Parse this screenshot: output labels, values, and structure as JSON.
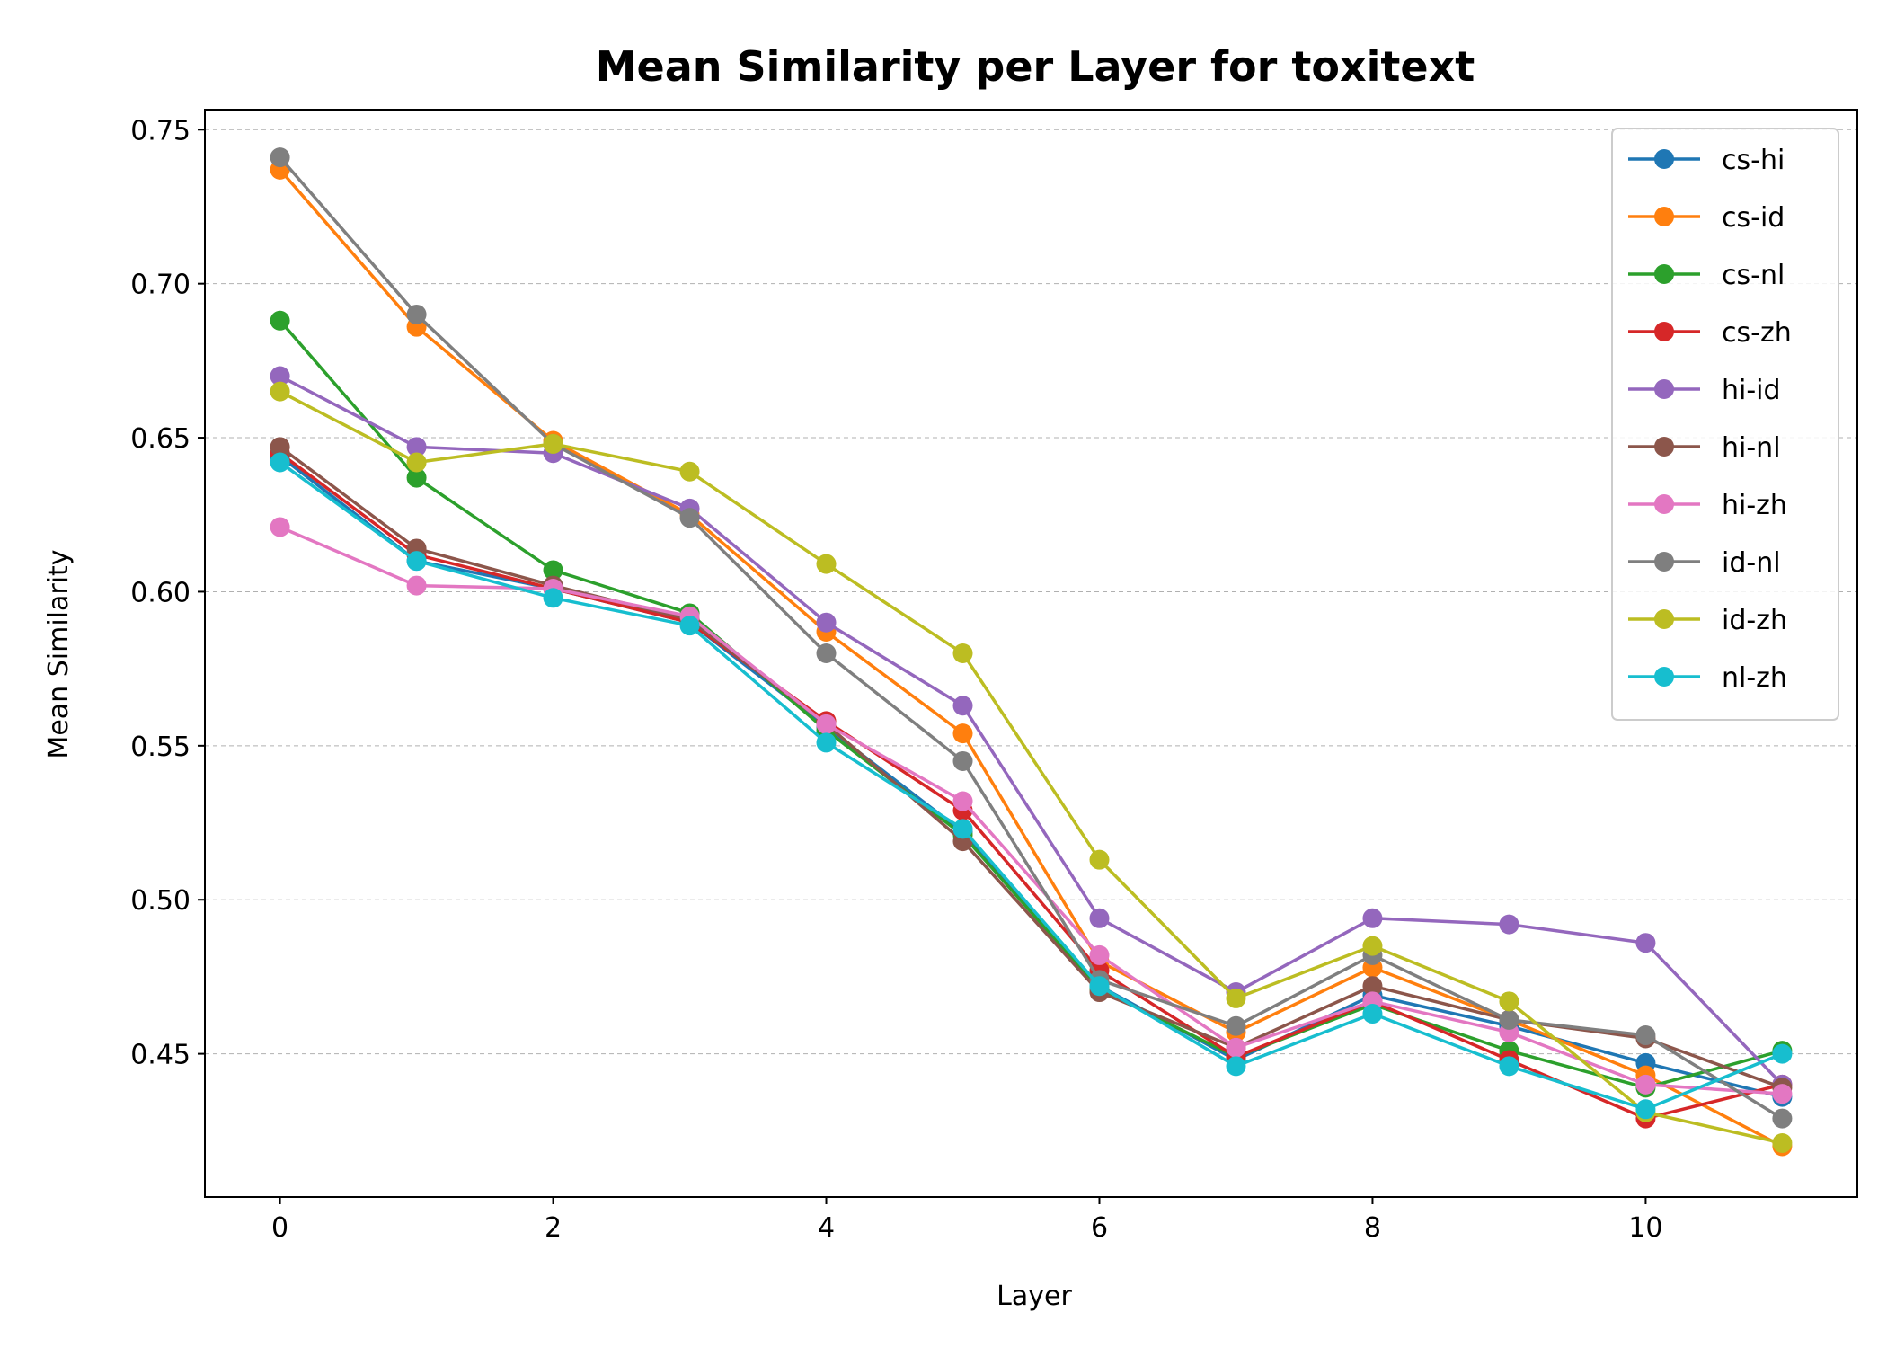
{
  "chart_data": {
    "type": "line",
    "title": "Mean Similarity per Layer for toxitext",
    "xlabel": "Layer",
    "ylabel": "Mean Similarity",
    "x": [
      0,
      1,
      2,
      3,
      4,
      5,
      6,
      7,
      8,
      9,
      10,
      11
    ],
    "xlim": [
      -0.55,
      11.55
    ],
    "ylim": [
      0.4035,
      0.7565
    ],
    "xticks": [
      0,
      2,
      4,
      6,
      8,
      10
    ],
    "yticks": [
      0.45,
      0.5,
      0.55,
      0.6,
      0.65,
      0.7,
      0.75
    ],
    "ytick_labels": [
      "0.45",
      "0.50",
      "0.55",
      "0.60",
      "0.65",
      "0.70",
      "0.75"
    ],
    "grid": "y-dashed",
    "legend_position": "upper-right",
    "series": [
      {
        "name": "cs-hi",
        "color": "#1f77b4",
        "values": [
          0.644,
          0.61,
          0.601,
          0.59,
          0.556,
          0.522,
          0.472,
          0.448,
          0.469,
          0.459,
          0.447,
          0.436
        ]
      },
      {
        "name": "cs-id",
        "color": "#ff7f0e",
        "values": [
          0.737,
          0.686,
          0.649,
          0.625,
          0.587,
          0.554,
          0.48,
          0.457,
          0.478,
          0.461,
          0.443,
          0.42
        ]
      },
      {
        "name": "cs-nl",
        "color": "#2ca02c",
        "values": [
          0.688,
          0.637,
          0.607,
          0.593,
          0.555,
          0.521,
          0.471,
          0.449,
          0.466,
          0.451,
          0.439,
          0.451
        ]
      },
      {
        "name": "cs-zh",
        "color": "#d62728",
        "values": [
          0.645,
          0.612,
          0.601,
          0.59,
          0.558,
          0.529,
          0.477,
          0.449,
          0.467,
          0.448,
          0.429,
          0.44
        ]
      },
      {
        "name": "hi-id",
        "color": "#9467bd",
        "values": [
          0.67,
          0.647,
          0.645,
          0.627,
          0.59,
          0.563,
          0.494,
          0.47,
          0.494,
          0.492,
          0.486,
          0.44
        ]
      },
      {
        "name": "hi-nl",
        "color": "#8c564b",
        "values": [
          0.647,
          0.614,
          0.602,
          0.591,
          0.557,
          0.519,
          0.47,
          0.452,
          0.472,
          0.461,
          0.455,
          0.439
        ]
      },
      {
        "name": "hi-zh",
        "color": "#e377c2",
        "values": [
          0.621,
          0.602,
          0.601,
          0.592,
          0.557,
          0.532,
          0.482,
          0.452,
          0.467,
          0.457,
          0.44,
          0.437
        ]
      },
      {
        "name": "id-nl",
        "color": "#7f7f7f",
        "values": [
          0.741,
          0.69,
          0.648,
          0.624,
          0.58,
          0.545,
          0.474,
          0.459,
          0.482,
          0.461,
          0.456,
          0.429
        ]
      },
      {
        "name": "id-zh",
        "color": "#bcbd22",
        "values": [
          0.665,
          0.642,
          0.648,
          0.639,
          0.609,
          0.58,
          0.513,
          0.468,
          0.485,
          0.467,
          0.431,
          0.421
        ]
      },
      {
        "name": "nl-zh",
        "color": "#17becf",
        "values": [
          0.642,
          0.61,
          0.598,
          0.589,
          0.551,
          0.523,
          0.472,
          0.446,
          0.463,
          0.446,
          0.432,
          0.45
        ]
      }
    ]
  }
}
